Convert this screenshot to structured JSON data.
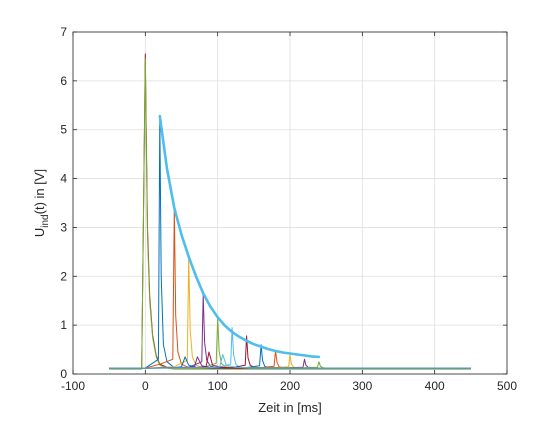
{
  "chart_data": {
    "type": "line",
    "xlabel": "Zeit in [ms]",
    "ylabel": {
      "base": "U",
      "sub": "ind",
      "rest": "(t) in [V]"
    },
    "xlim": [
      -100,
      500
    ],
    "ylim": [
      0,
      7
    ],
    "xticks": [
      -100,
      0,
      100,
      200,
      300,
      400,
      500
    ],
    "yticks": [
      0,
      1,
      2,
      3,
      4,
      5,
      6,
      7
    ],
    "grid": true,
    "colors": {
      "blue": "#0072BD",
      "orange": "#D95319",
      "yellow": "#EDB120",
      "purple": "#7E2F8E",
      "green": "#77AC30",
      "cyan": "#4DBEEE",
      "darkred": "#A2142F"
    },
    "series": [
      {
        "color": "darkred",
        "x": [
          -50,
          -5,
          0,
          1,
          3,
          6,
          10,
          15,
          20,
          30,
          40,
          60,
          100,
          200,
          300,
          450
        ],
        "y": [
          0.12,
          0.12,
          6.55,
          5.2,
          3.0,
          1.6,
          0.8,
          0.38,
          0.2,
          0.14,
          0.12,
          0.12,
          0.11,
          0.12,
          0.12,
          0.12
        ]
      },
      {
        "color": "green",
        "x": [
          -50,
          -5,
          0,
          1,
          3,
          6,
          10,
          15,
          20,
          30,
          40,
          60,
          100,
          200,
          300,
          450
        ],
        "y": [
          0.1,
          0.1,
          6.45,
          5.0,
          2.8,
          1.5,
          0.75,
          0.35,
          0.18,
          0.12,
          0.1,
          0.1,
          0.1,
          0.1,
          0.1,
          0.1
        ]
      },
      {
        "color": "blue",
        "x": [
          -50,
          0,
          18,
          20,
          22,
          25,
          30,
          40,
          100,
          450
        ],
        "y": [
          0.12,
          0.12,
          0.3,
          5.25,
          2.0,
          0.6,
          0.25,
          0.13,
          0.12,
          0.12
        ]
      },
      {
        "color": "orange",
        "x": [
          -50,
          0,
          20,
          38,
          40,
          42,
          45,
          50,
          60,
          100,
          450
        ],
        "y": [
          0.12,
          0.12,
          0.2,
          0.3,
          3.4,
          1.2,
          0.45,
          0.2,
          0.13,
          0.12,
          0.12
        ]
      },
      {
        "color": "yellow",
        "x": [
          -50,
          0,
          40,
          58,
          60,
          62,
          65,
          70,
          80,
          120,
          450
        ],
        "y": [
          0.12,
          0.12,
          0.15,
          0.28,
          2.4,
          0.9,
          0.35,
          0.18,
          0.13,
          0.12,
          0.12
        ]
      },
      {
        "color": "purple",
        "x": [
          -50,
          0,
          60,
          78,
          80,
          82,
          85,
          90,
          100,
          140,
          450
        ],
        "y": [
          0.12,
          0.12,
          0.14,
          0.25,
          1.62,
          0.65,
          0.28,
          0.16,
          0.13,
          0.12,
          0.12
        ]
      },
      {
        "color": "green",
        "x": [
          -50,
          0,
          80,
          98,
          100,
          102,
          105,
          110,
          120,
          160,
          450
        ],
        "y": [
          0.12,
          0.12,
          0.13,
          0.22,
          1.15,
          0.48,
          0.22,
          0.15,
          0.13,
          0.12,
          0.12
        ]
      },
      {
        "color": "cyan",
        "x": [
          -50,
          0,
          100,
          118,
          120,
          122,
          125,
          130,
          140,
          180,
          450
        ],
        "y": [
          0.12,
          0.12,
          0.13,
          0.2,
          0.95,
          0.4,
          0.2,
          0.14,
          0.13,
          0.12,
          0.12
        ]
      },
      {
        "color": "darkred",
        "x": [
          -50,
          0,
          120,
          138,
          140,
          142,
          145,
          150,
          160,
          200,
          450
        ],
        "y": [
          0.12,
          0.12,
          0.13,
          0.18,
          0.78,
          0.33,
          0.18,
          0.14,
          0.13,
          0.12,
          0.12
        ]
      },
      {
        "color": "blue",
        "x": [
          -50,
          0,
          140,
          158,
          160,
          162,
          165,
          170,
          180,
          220,
          450
        ],
        "y": [
          0.12,
          0.12,
          0.13,
          0.17,
          0.6,
          0.28,
          0.16,
          0.13,
          0.12,
          0.12,
          0.12
        ]
      },
      {
        "color": "orange",
        "x": [
          -50,
          0,
          160,
          178,
          180,
          182,
          185,
          190,
          200,
          240,
          450
        ],
        "y": [
          0.12,
          0.12,
          0.13,
          0.16,
          0.48,
          0.24,
          0.15,
          0.13,
          0.12,
          0.12,
          0.12
        ]
      },
      {
        "color": "yellow",
        "x": [
          -50,
          0,
          180,
          198,
          200,
          202,
          205,
          210,
          220,
          260,
          450
        ],
        "y": [
          0.12,
          0.12,
          0.13,
          0.15,
          0.4,
          0.2,
          0.14,
          0.13,
          0.12,
          0.12,
          0.12
        ]
      },
      {
        "color": "purple",
        "x": [
          -50,
          0,
          200,
          218,
          220,
          222,
          225,
          230,
          240,
          280,
          450
        ],
        "y": [
          0.12,
          0.12,
          0.13,
          0.14,
          0.3,
          0.18,
          0.14,
          0.13,
          0.12,
          0.12,
          0.12
        ]
      },
      {
        "color": "green",
        "x": [
          -50,
          0,
          220,
          238,
          240,
          242,
          245,
          250,
          260,
          300,
          450
        ],
        "y": [
          0.12,
          0.12,
          0.13,
          0.14,
          0.25,
          0.16,
          0.13,
          0.12,
          0.12,
          0.12,
          0.12
        ]
      },
      {
        "color": "blue",
        "x": [
          -50,
          0,
          40,
          50,
          55,
          60,
          70,
          90,
          450
        ],
        "y": [
          0.12,
          0.12,
          0.13,
          0.15,
          0.35,
          0.18,
          0.14,
          0.12,
          0.12
        ]
      },
      {
        "color": "purple",
        "x": [
          -50,
          0,
          55,
          68,
          72,
          78,
          90,
          110,
          450
        ],
        "y": [
          0.12,
          0.12,
          0.13,
          0.15,
          0.35,
          0.17,
          0.13,
          0.12,
          0.12
        ]
      },
      {
        "color": "darkred",
        "x": [
          -50,
          0,
          70,
          84,
          88,
          93,
          105,
          125,
          450
        ],
        "y": [
          0.12,
          0.12,
          0.13,
          0.15,
          0.45,
          0.18,
          0.14,
          0.12,
          0.12
        ]
      },
      {
        "color": "cyan",
        "x": [
          -50,
          0,
          90,
          103,
          107,
          112,
          125,
          145,
          450
        ],
        "y": [
          0.12,
          0.12,
          0.13,
          0.15,
          0.4,
          0.18,
          0.14,
          0.12,
          0.12
        ]
      }
    ],
    "envelope": {
      "color": "cyan",
      "x": [
        20,
        30,
        40,
        50,
        60,
        70,
        80,
        90,
        100,
        110,
        120,
        130,
        140,
        150,
        160,
        170,
        180,
        190,
        200,
        210,
        220,
        230,
        240
      ],
      "y": [
        5.28,
        4.2,
        3.4,
        2.85,
        2.4,
        2.0,
        1.65,
        1.38,
        1.16,
        0.99,
        0.86,
        0.76,
        0.68,
        0.61,
        0.56,
        0.51,
        0.47,
        0.44,
        0.42,
        0.4,
        0.38,
        0.36,
        0.35
      ]
    }
  }
}
